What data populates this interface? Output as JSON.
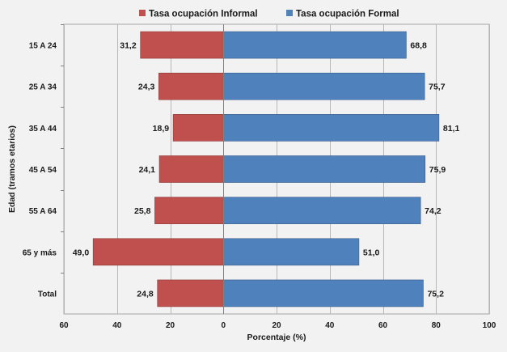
{
  "chart_data": {
    "type": "bar",
    "orientation": "horizontal",
    "layout": "diverging",
    "categories": [
      "15 A  24",
      "25 A 34",
      "35 A 44",
      "45 A 54",
      "55 A 64",
      "65 y más",
      "Total"
    ],
    "series": [
      {
        "name": "Tasa ocupación Informal",
        "color": "#c0504d",
        "direction": "left",
        "values": [
          31.2,
          24.3,
          18.9,
          24.1,
          25.8,
          49.0,
          24.8
        ],
        "labels": [
          "31,2",
          "24,3",
          "18,9",
          "24,1",
          "25,8",
          "49,0",
          "24,8"
        ]
      },
      {
        "name": "Tasa ocupación Formal",
        "color": "#4f81bd",
        "direction": "right",
        "values": [
          68.8,
          75.7,
          81.1,
          75.9,
          74.2,
          51.0,
          75.2
        ],
        "labels": [
          "68,8",
          "75,7",
          "81,1",
          "75,9",
          "74,2",
          "51,0",
          "75,2"
        ]
      }
    ],
    "xlim": [
      -60,
      100
    ],
    "xticks": [
      -60,
      -40,
      -20,
      0,
      20,
      40,
      60,
      80,
      100
    ],
    "xtick_labels": [
      "60",
      "40",
      "20",
      "0",
      "20",
      "40",
      "60",
      "80",
      "100"
    ],
    "xlabel": "Porcentaje (%)",
    "ylabel": "Edad (tramos etarios)",
    "title": "",
    "legend_position": "top",
    "grid": {
      "vertical": true,
      "horizontal": false
    }
  }
}
